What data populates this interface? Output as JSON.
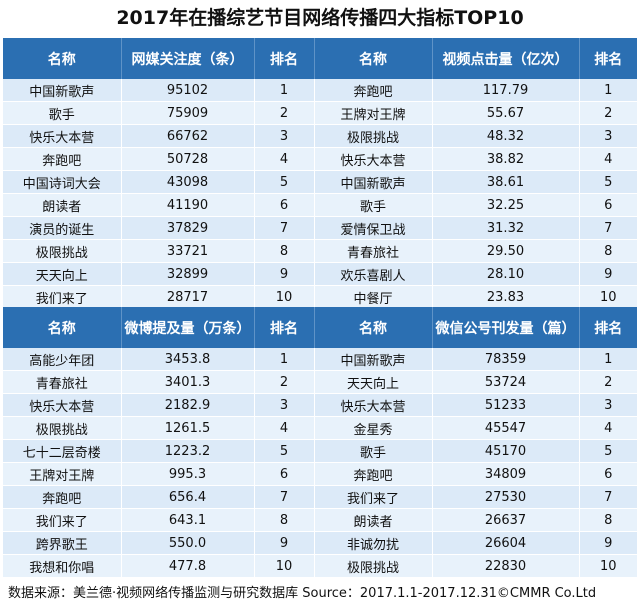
{
  "title": "2017年在播综艺节目网络传播四大指标TOP10",
  "top_headers": [
    "名称",
    "网媒关注度（条）",
    "排名",
    "名称",
    "视频点击量（亿次）",
    "排名"
  ],
  "bottom_headers": [
    "名称",
    "微博提及量（万条）",
    "排名",
    "名称",
    "微信公号刊发量（篇）",
    "排名"
  ],
  "top_rows": [
    [
      "中国新歌声",
      "95102",
      "1",
      "奔跑吧",
      "117.79",
      "1"
    ],
    [
      "歌手",
      "75909",
      "2",
      "王牌对王牌",
      "55.67",
      "2"
    ],
    [
      "快乐大本营",
      "66762",
      "3",
      "极限挑战",
      "48.32",
      "3"
    ],
    [
      "奔跑吧",
      "50728",
      "4",
      "快乐大本营",
      "38.82",
      "4"
    ],
    [
      "中国诗词大会",
      "43098",
      "5",
      "中国新歌声",
      "38.61",
      "5"
    ],
    [
      "朗读者",
      "41190",
      "6",
      "歌手",
      "32.25",
      "6"
    ],
    [
      "演员的诞生",
      "37829",
      "7",
      "爱情保卫战",
      "31.32",
      "7"
    ],
    [
      "极限挑战",
      "33721",
      "8",
      "青春旅社",
      "29.50",
      "8"
    ],
    [
      "天天向上",
      "32899",
      "9",
      "欢乐喜剧人",
      "28.10",
      "9"
    ],
    [
      "我们来了",
      "28717",
      "10",
      "中餐厅",
      "23.83",
      "10"
    ]
  ],
  "bottom_rows": [
    [
      "高能少年团",
      "3453.8",
      "1",
      "中国新歌声",
      "78359",
      "1"
    ],
    [
      "青春旅社",
      "3401.3",
      "2",
      "天天向上",
      "53724",
      "2"
    ],
    [
      "快乐大本营",
      "2182.9",
      "3",
      "快乐大本营",
      "51233",
      "3"
    ],
    [
      "极限挑战",
      "1261.5",
      "4",
      "金星秀",
      "45547",
      "4"
    ],
    [
      "七十二层奇楼",
      "1223.2",
      "5",
      "歌手",
      "45170",
      "5"
    ],
    [
      "王牌对王牌",
      "995.3",
      "6",
      "奔跑吧",
      "34809",
      "6"
    ],
    [
      "奔跑吧",
      "656.4",
      "7",
      "我们来了",
      "27530",
      "7"
    ],
    [
      "我们来了",
      "643.1",
      "8",
      "朗读者",
      "26637",
      "8"
    ],
    [
      "跨界歌王",
      "550.0",
      "9",
      "非诚勿扰",
      "26604",
      "9"
    ],
    [
      "我想和你唱",
      "477.8",
      "10",
      "极限挑战",
      "22830",
      "10"
    ]
  ],
  "footer": "数据来源：美兰德·视频网络传播监测与研究数据库 Source：2017.1.1-2017.12.31©CMMR Co.Ltd",
  "colors": {
    "header": "#2b6fb2",
    "row_light": "#dceaf8",
    "row_alt": "#e8f2fb"
  },
  "chart_data": {
    "type": "table",
    "title": "2017年在播综艺节目网络传播四大指标TOP10",
    "tables": [
      {
        "columns": [
          "名称",
          "网媒关注度（条）",
          "排名"
        ],
        "rows": [
          [
            "中国新歌声",
            95102,
            1
          ],
          [
            "歌手",
            75909,
            2
          ],
          [
            "快乐大本营",
            66762,
            3
          ],
          [
            "奔跑吧",
            50728,
            4
          ],
          [
            "中国诗词大会",
            43098,
            5
          ],
          [
            "朗读者",
            41190,
            6
          ],
          [
            "演员的诞生",
            37829,
            7
          ],
          [
            "极限挑战",
            33721,
            8
          ],
          [
            "天天向上",
            32899,
            9
          ],
          [
            "我们来了",
            28717,
            10
          ]
        ]
      },
      {
        "columns": [
          "名称",
          "视频点击量（亿次）",
          "排名"
        ],
        "rows": [
          [
            "奔跑吧",
            117.79,
            1
          ],
          [
            "王牌对王牌",
            55.67,
            2
          ],
          [
            "极限挑战",
            48.32,
            3
          ],
          [
            "快乐大本营",
            38.82,
            4
          ],
          [
            "中国新歌声",
            38.61,
            5
          ],
          [
            "歌手",
            32.25,
            6
          ],
          [
            "爱情保卫战",
            31.32,
            7
          ],
          [
            "青春旅社",
            29.5,
            8
          ],
          [
            "欢乐喜剧人",
            28.1,
            9
          ],
          [
            "中餐厅",
            23.83,
            10
          ]
        ]
      },
      {
        "columns": [
          "名称",
          "微博提及量（万条）",
          "排名"
        ],
        "rows": [
          [
            "高能少年团",
            3453.8,
            1
          ],
          [
            "青春旅社",
            3401.3,
            2
          ],
          [
            "快乐大本营",
            2182.9,
            3
          ],
          [
            "极限挑战",
            1261.5,
            4
          ],
          [
            "七十二层奇楼",
            1223.2,
            5
          ],
          [
            "王牌对王牌",
            995.3,
            6
          ],
          [
            "奔跑吧",
            656.4,
            7
          ],
          [
            "我们来了",
            643.1,
            8
          ],
          [
            "跨界歌王",
            550.0,
            9
          ],
          [
            "我想和你唱",
            477.8,
            10
          ]
        ]
      },
      {
        "columns": [
          "名称",
          "微信公号刊发量（篇）",
          "排名"
        ],
        "rows": [
          [
            "中国新歌声",
            78359,
            1
          ],
          [
            "天天向上",
            53724,
            2
          ],
          [
            "快乐大本营",
            51233,
            3
          ],
          [
            "金星秀",
            45547,
            4
          ],
          [
            "歌手",
            45170,
            5
          ],
          [
            "奔跑吧",
            34809,
            6
          ],
          [
            "我们来了",
            27530,
            7
          ],
          [
            "朗读者",
            26637,
            8
          ],
          [
            "非诚勿扰",
            26604,
            9
          ],
          [
            "极限挑战",
            22830,
            10
          ]
        ]
      }
    ]
  }
}
